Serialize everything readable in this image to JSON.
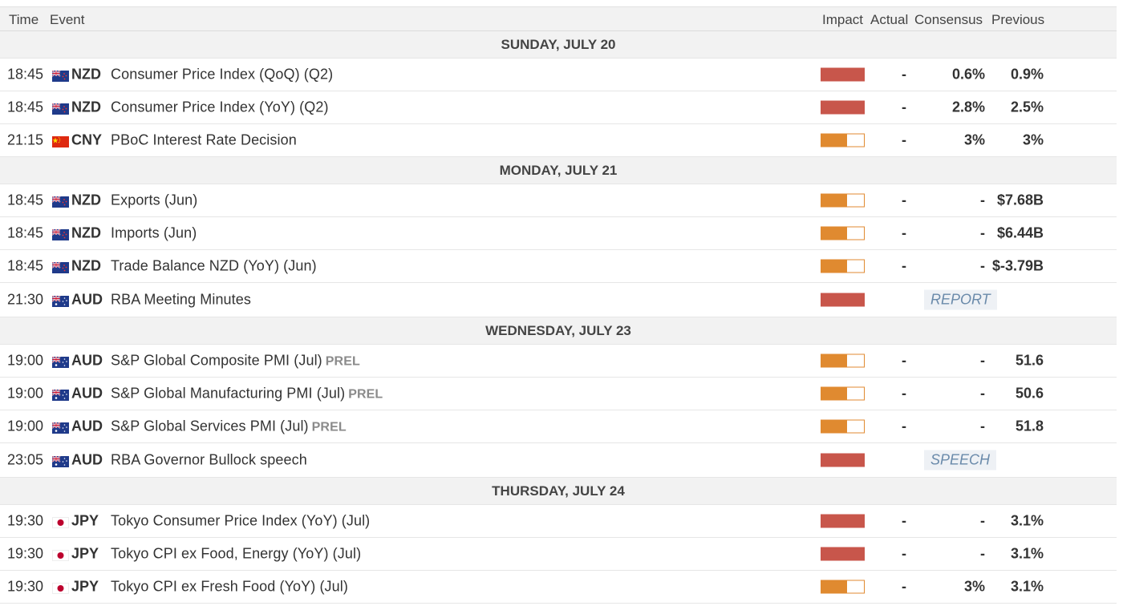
{
  "header": {
    "time": "Time",
    "event": "Event",
    "impact": "Impact",
    "actual": "Actual",
    "consensus": "Consensus",
    "previous": "Previous"
  },
  "days": [
    {
      "label": "SUNDAY, JULY 20",
      "events": [
        {
          "time": "18:45",
          "flag": "nz",
          "currency": "NZD",
          "name": "Consumer Price Index (QoQ) (Q2)",
          "prel": "",
          "impact": "high",
          "impact_level": 1.0,
          "actual": "-",
          "consensus": "0.6%",
          "previous": "0.9%",
          "tag": ""
        },
        {
          "time": "18:45",
          "flag": "nz",
          "currency": "NZD",
          "name": "Consumer Price Index (YoY) (Q2)",
          "prel": "",
          "impact": "high",
          "impact_level": 1.0,
          "actual": "-",
          "consensus": "2.8%",
          "previous": "2.5%",
          "tag": ""
        },
        {
          "time": "21:15",
          "flag": "cn",
          "currency": "CNY",
          "name": "PBoC Interest Rate Decision",
          "prel": "",
          "impact": "medium",
          "impact_level": 0.6,
          "actual": "-",
          "consensus": "3%",
          "previous": "3%",
          "tag": ""
        }
      ]
    },
    {
      "label": "MONDAY, JULY 21",
      "events": [
        {
          "time": "18:45",
          "flag": "nz",
          "currency": "NZD",
          "name": "Exports (Jun)",
          "prel": "",
          "impact": "medium",
          "impact_level": 0.6,
          "actual": "-",
          "consensus": "-",
          "previous": "$7.68B",
          "tag": ""
        },
        {
          "time": "18:45",
          "flag": "nz",
          "currency": "NZD",
          "name": "Imports (Jun)",
          "prel": "",
          "impact": "medium",
          "impact_level": 0.6,
          "actual": "-",
          "consensus": "-",
          "previous": "$6.44B",
          "tag": ""
        },
        {
          "time": "18:45",
          "flag": "nz",
          "currency": "NZD",
          "name": "Trade Balance NZD (YoY) (Jun)",
          "prel": "",
          "impact": "medium",
          "impact_level": 0.6,
          "actual": "-",
          "consensus": "-",
          "previous": "$-3.79B",
          "tag": ""
        },
        {
          "time": "21:30",
          "flag": "au",
          "currency": "AUD",
          "name": "RBA Meeting Minutes",
          "prel": "",
          "impact": "high",
          "impact_level": 1.0,
          "actual": "",
          "consensus": "",
          "previous": "",
          "tag": "REPORT"
        }
      ]
    },
    {
      "label": "WEDNESDAY, JULY 23",
      "events": [
        {
          "time": "19:00",
          "flag": "au",
          "currency": "AUD",
          "name": "S&P Global Composite PMI (Jul)",
          "prel": "PREL",
          "impact": "medium",
          "impact_level": 0.6,
          "actual": "-",
          "consensus": "-",
          "previous": "51.6",
          "tag": ""
        },
        {
          "time": "19:00",
          "flag": "au",
          "currency": "AUD",
          "name": "S&P Global Manufacturing PMI (Jul)",
          "prel": "PREL",
          "impact": "medium",
          "impact_level": 0.6,
          "actual": "-",
          "consensus": "-",
          "previous": "50.6",
          "tag": ""
        },
        {
          "time": "19:00",
          "flag": "au",
          "currency": "AUD",
          "name": "S&P Global Services PMI (Jul)",
          "prel": "PREL",
          "impact": "medium",
          "impact_level": 0.6,
          "actual": "-",
          "consensus": "-",
          "previous": "51.8",
          "tag": ""
        },
        {
          "time": "23:05",
          "flag": "au",
          "currency": "AUD",
          "name": "RBA Governor Bullock speech",
          "prel": "",
          "impact": "high",
          "impact_level": 1.0,
          "actual": "",
          "consensus": "",
          "previous": "",
          "tag": "SPEECH"
        }
      ]
    },
    {
      "label": "THURSDAY, JULY 24",
      "events": [
        {
          "time": "19:30",
          "flag": "jp",
          "currency": "JPY",
          "name": "Tokyo Consumer Price Index (YoY) (Jul)",
          "prel": "",
          "impact": "high",
          "impact_level": 1.0,
          "actual": "-",
          "consensus": "-",
          "previous": "3.1%",
          "tag": ""
        },
        {
          "time": "19:30",
          "flag": "jp",
          "currency": "JPY",
          "name": "Tokyo CPI ex Food, Energy (YoY) (Jul)",
          "prel": "",
          "impact": "high",
          "impact_level": 1.0,
          "actual": "-",
          "consensus": "-",
          "previous": "3.1%",
          "tag": ""
        },
        {
          "time": "19:30",
          "flag": "jp",
          "currency": "JPY",
          "name": "Tokyo CPI ex Fresh Food (YoY) (Jul)",
          "prel": "",
          "impact": "medium",
          "impact_level": 0.6,
          "actual": "-",
          "consensus": "3%",
          "previous": "3.1%",
          "tag": ""
        }
      ]
    }
  ],
  "colors": {
    "impact_high": "#c8564b",
    "impact_medium": "#e08a30",
    "tag_text": "#6a8aaa"
  }
}
